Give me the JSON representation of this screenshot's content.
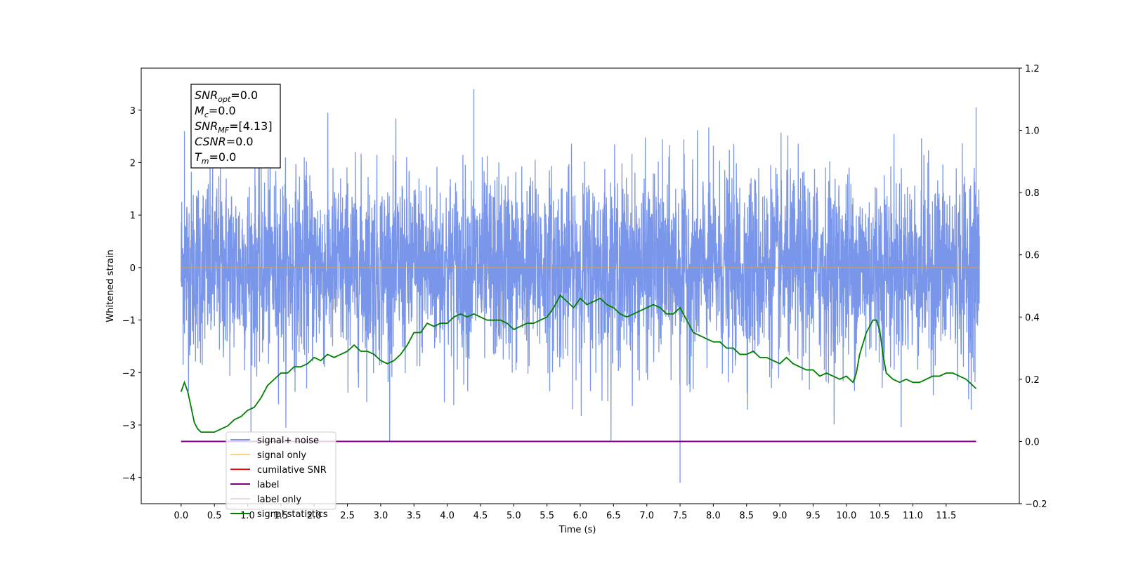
{
  "chart_data": {
    "type": "line",
    "title": "",
    "xlabel": "Time (s)",
    "ylabel": "Whitened strain",
    "xlim": [
      -0.6,
      12.6
    ],
    "ylim": [
      -4.5,
      3.8
    ],
    "y2lim": [
      -0.2,
      1.2
    ],
    "grid": false,
    "legend_position": "lower-left",
    "xticks": [
      0.0,
      0.5,
      1.0,
      1.5,
      2.0,
      2.5,
      3.0,
      3.5,
      4.0,
      4.5,
      5.0,
      5.5,
      6.0,
      6.5,
      7.0,
      7.5,
      8.0,
      8.5,
      9.0,
      9.5,
      10.0,
      10.5,
      11.0,
      11.5
    ],
    "xtick_labels": [
      "0.0",
      "0.5",
      "1.0",
      "1.5",
      "2.0",
      "2.5",
      "3.0",
      "3.5",
      "4.0",
      "4.5",
      "5.0",
      "5.5",
      "6.0",
      "6.5",
      "7.0",
      "7.5",
      "8.0",
      "8.5",
      "9.0",
      "9.5",
      "10.0",
      "10.5",
      "11.0",
      "11.5"
    ],
    "yticks": [
      -4,
      -3,
      -2,
      -1,
      0,
      1,
      2,
      3
    ],
    "ytick_labels": [
      "−4",
      "−3",
      "−2",
      "−1",
      "0",
      "1",
      "2",
      "3"
    ],
    "y2ticks": [
      -0.2,
      0.0,
      0.2,
      0.4,
      0.6,
      0.8,
      1.0,
      1.2
    ],
    "y2tick_labels": [
      "−0.2",
      "0.0",
      "0.2",
      "0.4",
      "0.6",
      "0.8",
      "1.0",
      "1.2"
    ],
    "series": [
      {
        "name": "signal+ noise",
        "color": "#4169e1",
        "axis": "left",
        "description": "dense noise trace, approx uniform envelope",
        "x_range": [
          0.0,
          12.0
        ],
        "envelope": [
          -2.6,
          2.6
        ],
        "peaks": [
          [
            4.4,
            3.4
          ],
          [
            7.5,
            -4.1
          ],
          [
            0.05,
            2.6
          ],
          [
            11.95,
            3.05
          ]
        ]
      },
      {
        "name": "signal only",
        "color": "#ffa500",
        "axis": "left",
        "x": [
          0.0,
          12.0
        ],
        "y": [
          0.0,
          0.0
        ]
      },
      {
        "name": "cumilative SNR",
        "color": "#ff0000",
        "axis": "right",
        "x": [],
        "y": []
      },
      {
        "name": "label",
        "color": "#800080",
        "axis": "right",
        "x": [
          0.0,
          11.95
        ],
        "y": [
          0.0,
          0.0
        ]
      },
      {
        "name": "label only",
        "color": "#d8bfd8",
        "axis": "right",
        "x": [],
        "y": []
      },
      {
        "name": "signal statistics",
        "color": "#008000",
        "axis": "right",
        "x": [
          0.0,
          0.05,
          0.1,
          0.15,
          0.2,
          0.25,
          0.3,
          0.35,
          0.4,
          0.5,
          0.6,
          0.7,
          0.8,
          0.9,
          1.0,
          1.1,
          1.2,
          1.3,
          1.4,
          1.5,
          1.6,
          1.7,
          1.8,
          1.9,
          2.0,
          2.1,
          2.2,
          2.3,
          2.4,
          2.5,
          2.6,
          2.7,
          2.8,
          2.9,
          3.0,
          3.1,
          3.2,
          3.3,
          3.4,
          3.5,
          3.6,
          3.7,
          3.8,
          3.9,
          4.0,
          4.1,
          4.2,
          4.3,
          4.4,
          4.5,
          4.6,
          4.7,
          4.8,
          4.9,
          5.0,
          5.1,
          5.2,
          5.3,
          5.4,
          5.5,
          5.6,
          5.7,
          5.8,
          5.9,
          6.0,
          6.1,
          6.2,
          6.3,
          6.4,
          6.5,
          6.6,
          6.7,
          6.8,
          6.9,
          7.0,
          7.1,
          7.2,
          7.3,
          7.4,
          7.5,
          7.6,
          7.7,
          7.8,
          7.9,
          8.0,
          8.1,
          8.2,
          8.3,
          8.4,
          8.5,
          8.6,
          8.7,
          8.8,
          8.9,
          9.0,
          9.1,
          9.2,
          9.3,
          9.4,
          9.5,
          9.6,
          9.7,
          9.8,
          9.9,
          10.0,
          10.1,
          10.15,
          10.2,
          10.3,
          10.4,
          10.45,
          10.5,
          10.55,
          10.6,
          10.7,
          10.8,
          10.9,
          11.0,
          11.1,
          11.2,
          11.3,
          11.4,
          11.5,
          11.6,
          11.7,
          11.8,
          11.9,
          11.95
        ],
        "y": [
          0.16,
          0.19,
          0.16,
          0.11,
          0.06,
          0.04,
          0.03,
          0.03,
          0.03,
          0.03,
          0.04,
          0.05,
          0.07,
          0.08,
          0.1,
          0.11,
          0.14,
          0.18,
          0.2,
          0.22,
          0.22,
          0.24,
          0.24,
          0.25,
          0.27,
          0.26,
          0.28,
          0.27,
          0.28,
          0.29,
          0.31,
          0.29,
          0.29,
          0.28,
          0.26,
          0.25,
          0.26,
          0.28,
          0.31,
          0.35,
          0.35,
          0.38,
          0.37,
          0.38,
          0.38,
          0.4,
          0.41,
          0.4,
          0.41,
          0.4,
          0.39,
          0.39,
          0.39,
          0.38,
          0.36,
          0.37,
          0.38,
          0.38,
          0.39,
          0.4,
          0.43,
          0.47,
          0.45,
          0.43,
          0.46,
          0.44,
          0.45,
          0.46,
          0.44,
          0.43,
          0.41,
          0.4,
          0.41,
          0.42,
          0.43,
          0.44,
          0.43,
          0.41,
          0.41,
          0.43,
          0.39,
          0.35,
          0.34,
          0.33,
          0.32,
          0.32,
          0.3,
          0.3,
          0.28,
          0.28,
          0.29,
          0.27,
          0.27,
          0.26,
          0.25,
          0.27,
          0.25,
          0.24,
          0.23,
          0.23,
          0.21,
          0.22,
          0.21,
          0.2,
          0.21,
          0.19,
          0.22,
          0.28,
          0.35,
          0.39,
          0.39,
          0.36,
          0.28,
          0.22,
          0.2,
          0.19,
          0.2,
          0.19,
          0.19,
          0.2,
          0.21,
          0.21,
          0.22,
          0.22,
          0.21,
          0.2,
          0.18,
          0.17
        ]
      }
    ],
    "annotation": {
      "lines": [
        {
          "sym": "SNR",
          "sub": "opt",
          "value": "=0.0"
        },
        {
          "sym": "M",
          "sub": "c",
          "value": "=0.0"
        },
        {
          "sym": "SNR",
          "sub": "MF",
          "value": "=[4.13]"
        },
        {
          "sym": "CSNR",
          "sub": "",
          "value": "=0.0"
        },
        {
          "sym": "T",
          "sub": "m",
          "value": "=0.0"
        }
      ]
    }
  }
}
